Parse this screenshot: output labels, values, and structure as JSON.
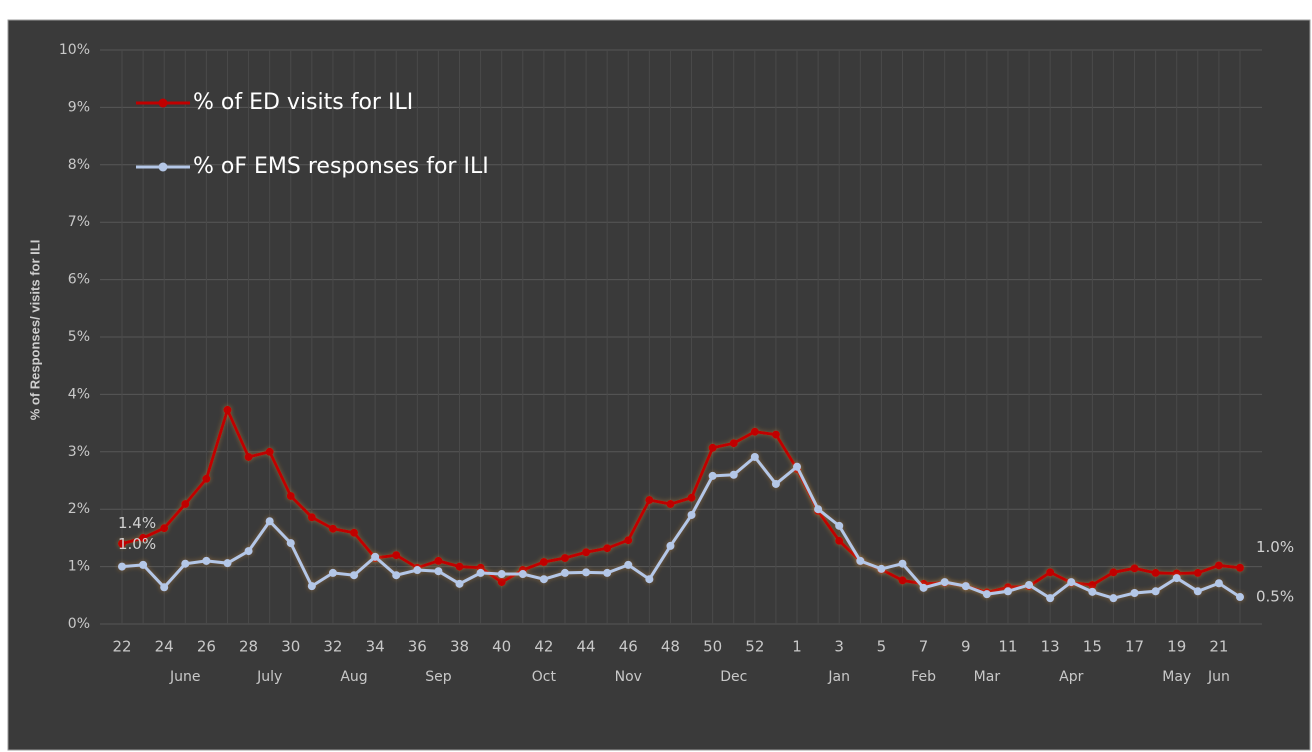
{
  "chart_data": {
    "type": "line",
    "y_label": "% of Responses/ visits for ILI",
    "categories": [
      "22",
      null,
      "24",
      null,
      "26",
      null,
      "28",
      null,
      "30",
      null,
      "32",
      null,
      "34",
      null,
      "36",
      null,
      "38",
      null,
      "40",
      null,
      "42",
      null,
      "44",
      null,
      "46",
      null,
      "48",
      null,
      "50",
      null,
      "52",
      null,
      "1",
      null,
      "3",
      null,
      "5",
      null,
      "7",
      null,
      "9",
      null,
      "11",
      null,
      "13",
      null,
      "15",
      null,
      "17",
      null,
      "19",
      null,
      "21",
      null
    ],
    "months": [
      null,
      null,
      null,
      "June",
      null,
      null,
      null,
      "July",
      null,
      null,
      null,
      "Aug",
      null,
      null,
      null,
      "Sep",
      null,
      null,
      null,
      null,
      "Oct",
      null,
      null,
      null,
      "Nov",
      null,
      null,
      null,
      null,
      "Dec",
      null,
      null,
      null,
      null,
      "Jan",
      null,
      null,
      null,
      "Feb",
      null,
      null,
      "Mar",
      null,
      null,
      null,
      "Apr",
      null,
      null,
      null,
      null,
      "May",
      null,
      "Jun",
      null
    ],
    "series": [
      {
        "name": "% of ED visits for ILI",
        "color": "#c00000",
        "values": [
          1.4,
          1.5,
          1.67,
          2.09,
          2.53,
          3.73,
          2.91,
          3.0,
          2.23,
          1.86,
          1.66,
          1.59,
          1.15,
          1.2,
          0.98,
          1.1,
          1.0,
          0.98,
          0.73,
          0.94,
          1.08,
          1.15,
          1.25,
          1.32,
          1.46,
          2.16,
          2.09,
          2.2,
          3.07,
          3.15,
          3.35,
          3.3,
          2.7,
          1.97,
          1.45,
          1.1,
          0.95,
          0.76,
          0.7,
          0.72,
          0.66,
          0.55,
          0.64,
          0.66,
          0.9,
          0.72,
          0.68,
          0.9,
          0.97,
          0.89,
          0.88,
          0.89,
          1.02,
          0.98
        ],
        "value_labels": [
          "1.4%",
          null,
          null,
          null,
          null,
          null,
          null,
          null,
          null,
          null,
          null,
          null,
          null,
          null,
          null,
          null,
          null,
          null,
          null,
          null,
          null,
          null,
          null,
          null,
          null,
          null,
          null,
          null,
          null,
          null,
          null,
          null,
          null,
          null,
          null,
          null,
          null,
          null,
          null,
          null,
          null,
          null,
          null,
          null,
          null,
          null,
          null,
          null,
          null,
          null,
          null,
          null,
          null,
          "1.0%"
        ]
      },
      {
        "name": "% oF EMS responses for ILI",
        "color": "#b4c7e7",
        "values": [
          1.0,
          1.03,
          0.64,
          1.05,
          1.1,
          1.06,
          1.27,
          1.79,
          1.41,
          0.66,
          0.89,
          0.85,
          1.17,
          0.85,
          0.94,
          0.92,
          0.7,
          0.89,
          0.87,
          0.87,
          0.78,
          0.89,
          0.9,
          0.89,
          1.03,
          0.78,
          1.36,
          1.9,
          2.58,
          2.6,
          2.91,
          2.44,
          2.74,
          2.0,
          1.71,
          1.1,
          0.96,
          1.05,
          0.63,
          0.73,
          0.66,
          0.52,
          0.57,
          0.68,
          0.45,
          0.73,
          0.56,
          0.45,
          0.54,
          0.57,
          0.8,
          0.57,
          0.71,
          0.47
        ],
        "value_labels": [
          "1.0%",
          null,
          null,
          null,
          null,
          null,
          null,
          null,
          null,
          null,
          null,
          null,
          null,
          null,
          null,
          null,
          null,
          null,
          null,
          null,
          null,
          null,
          null,
          null,
          null,
          null,
          null,
          null,
          null,
          null,
          null,
          null,
          null,
          null,
          null,
          null,
          null,
          null,
          null,
          null,
          null,
          null,
          null,
          null,
          null,
          null,
          null,
          null,
          null,
          null,
          null,
          null,
          null,
          "0.5%"
        ]
      }
    ],
    "ylim": [
      0,
      10
    ],
    "yticks": [
      {
        "value": 0,
        "label": "0%"
      },
      {
        "value": 1,
        "label": "1%"
      },
      {
        "value": 2,
        "label": "2%"
      },
      {
        "value": 3,
        "label": "3%"
      },
      {
        "value": 4,
        "label": "4%"
      },
      {
        "value": 5,
        "label": "5%"
      },
      {
        "value": 6,
        "label": "6%"
      },
      {
        "value": 7,
        "label": "7%"
      },
      {
        "value": 8,
        "label": "8%"
      },
      {
        "value": 9,
        "label": "9%"
      },
      {
        "value": 10,
        "label": "10%"
      }
    ],
    "grid": true,
    "legend": "top-left"
  }
}
